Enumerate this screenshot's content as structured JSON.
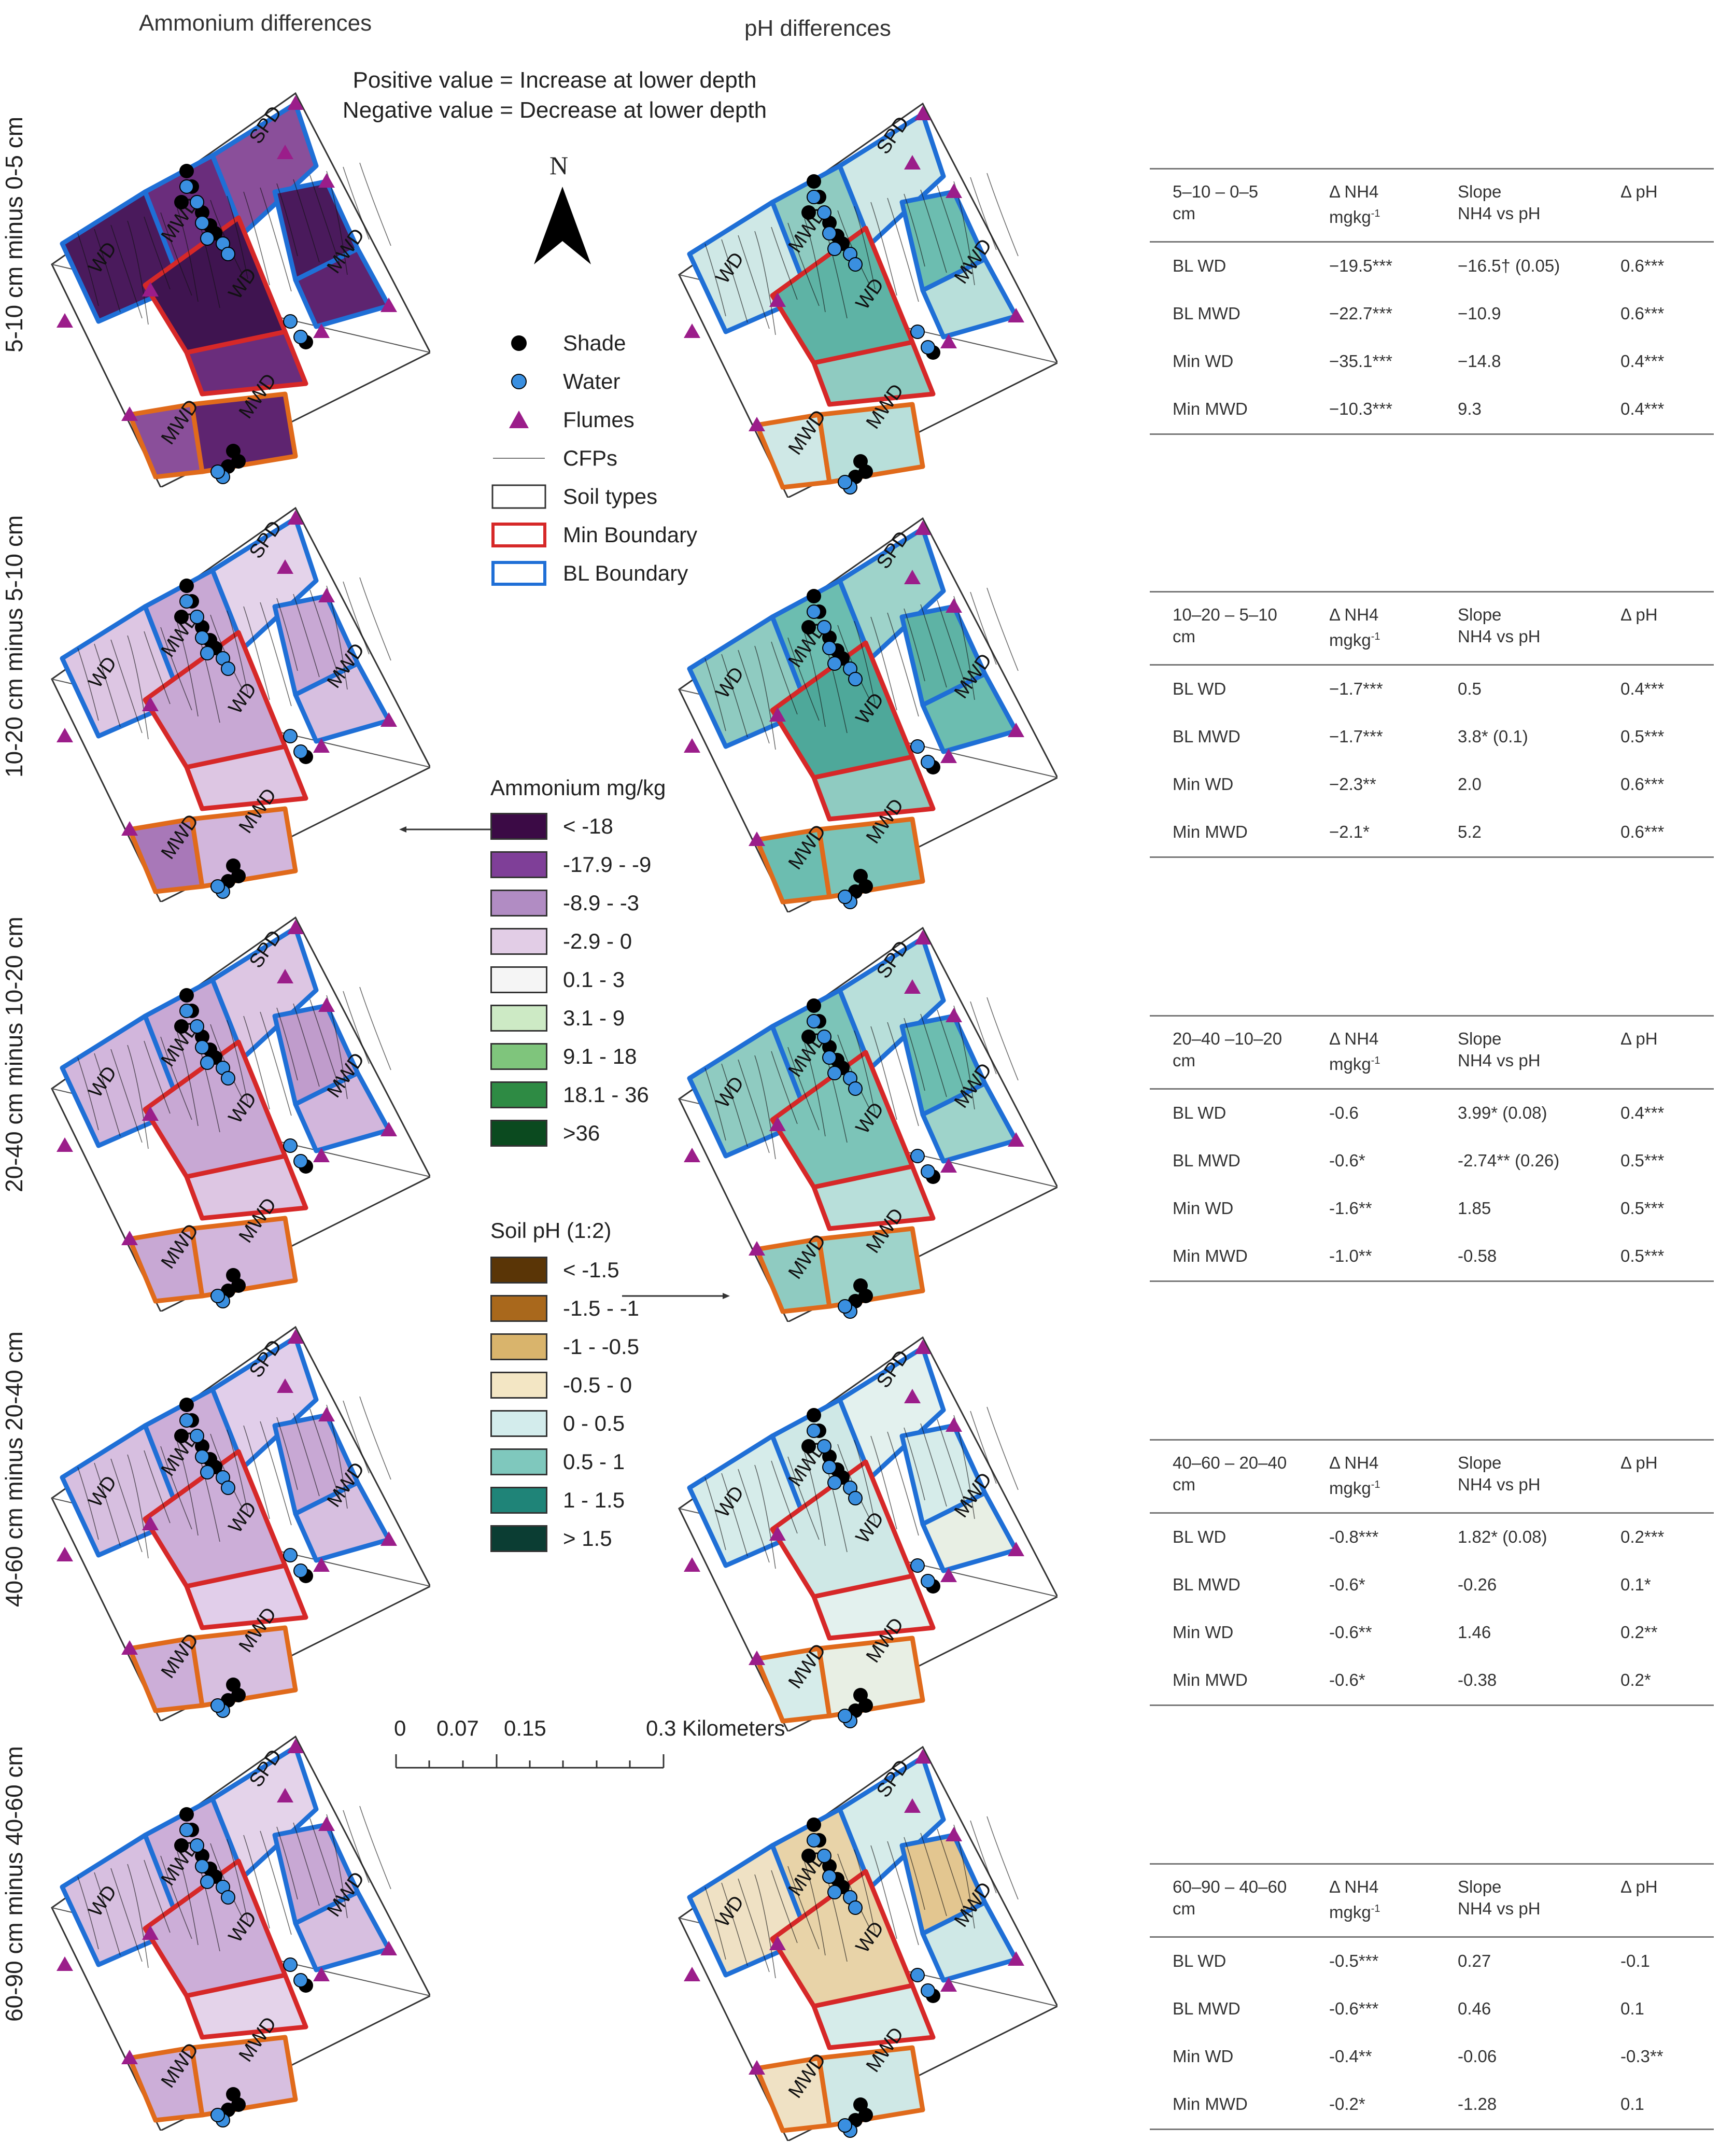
{
  "column_titles": {
    "ammonium": "Ammonium differences",
    "ph": "pH differences"
  },
  "note": {
    "line1": "Positive value = Increase at lower depth",
    "line2": "Negative value = Decrease at lower depth"
  },
  "north_label": "N",
  "rows": [
    {
      "label": "5-10 cm minus 0-5 cm",
      "amm_fill": [
        "#4a1a5c",
        "#6a2d7c",
        "#8a4f9a",
        "#4a1a5c",
        "#5e2470",
        "#3f1450",
        "#6a2d7c",
        "#8a4f9a",
        "#5e2470"
      ],
      "ph_fill": [
        "#cfe8e6",
        "#8fcbc1",
        "#cfe8e6",
        "#6cbdb0",
        "#b8dfda",
        "#5eb3a5",
        "#8fcbc1",
        "#cfe8e6",
        "#b8dfda"
      ]
    },
    {
      "label": "10-20 cm minus 5-10 cm",
      "amm_fill": [
        "#ddc6e3",
        "#c8a8d4",
        "#e4d3ea",
        "#c8a8d4",
        "#d7bfe0",
        "#c8a8d4",
        "#ddc6e3",
        "#a878b8",
        "#d2b6dc"
      ],
      "ph_fill": [
        "#8fcbc1",
        "#6cbdb0",
        "#9ed3ca",
        "#5eb3a5",
        "#6cbdb0",
        "#4ea89a",
        "#8fcbc1",
        "#6cbdb0",
        "#7cc4b8"
      ]
    },
    {
      "label": "20-40 cm minus 10-20 cm",
      "amm_fill": [
        "#d2b6dc",
        "#c8a8d4",
        "#ddc6e3",
        "#c09ccc",
        "#d2b6dc",
        "#c8a8d4",
        "#ddc6e3",
        "#c8a8d4",
        "#d2b6dc"
      ],
      "ph_fill": [
        "#8fcbc1",
        "#7cc4b8",
        "#b8dfda",
        "#6cbdb0",
        "#9ed3ca",
        "#7cc4b8",
        "#b8dfda",
        "#8fcbc1",
        "#9ed3ca"
      ]
    },
    {
      "label": "40-60 cm minus 20-40 cm",
      "amm_fill": [
        "#d7bfe0",
        "#ccaed8",
        "#e1ceea",
        "#c8a8d4",
        "#d7bfe0",
        "#ccaed8",
        "#e1ceea",
        "#ccaed8",
        "#d7bfe0"
      ],
      "ph_fill": [
        "#d6ecea",
        "#cfe8e6",
        "#e3f1ee",
        "#d6ecea",
        "#e8efe4",
        "#cfe8e6",
        "#e3f1ee",
        "#d6ecea",
        "#e8efe4"
      ]
    },
    {
      "label": "60-90 cm minus 40-60 cm",
      "amm_fill": [
        "#d7bfe0",
        "#ccaed8",
        "#e4d3ea",
        "#c8a8d4",
        "#d7bfe0",
        "#ccaed8",
        "#e4d3ea",
        "#ccaed8",
        "#d7bfe0"
      ],
      "ph_fill": [
        "#efe1c4",
        "#e8d3a8",
        "#d6ecea",
        "#e3c690",
        "#cfe8e6",
        "#e8d3a8",
        "#d6ecea",
        "#efe1c4",
        "#cfe8e6"
      ]
    }
  ],
  "map_labels": [
    "SPD",
    "WD",
    "MWD",
    "WD",
    "MWD",
    "MWD",
    "WD",
    "MWD"
  ],
  "boundary_colors": {
    "min": "#d62828",
    "bl": "#1f6fd6",
    "orange": "#e06a1b"
  },
  "symbol_legend": [
    {
      "label": "Shade",
      "icon": "black-circle"
    },
    {
      "label": "Water",
      "icon": "blue-circle"
    },
    {
      "label": "Flumes",
      "icon": "purple-triangle"
    },
    {
      "label": "CFPs",
      "icon": "thin-line"
    },
    {
      "label": "Soil types",
      "icon": "black-rectangle"
    },
    {
      "label": "Min Boundary",
      "icon": "red-rectangle"
    },
    {
      "label": "BL Boundary",
      "icon": "blue-rectangle"
    }
  ],
  "ammonium_legend": {
    "title": "Ammonium mg/kg",
    "items": [
      {
        "label": "< -18",
        "color": "#3b0a45"
      },
      {
        "label": "-17.9 - -9",
        "color": "#7f3f98"
      },
      {
        "label": "-8.9 - -3",
        "color": "#b18cc3"
      },
      {
        "label": "-2.9 - 0",
        "color": "#e2cde6"
      },
      {
        "label": "0.1 - 3",
        "color": "#f5f5f5"
      },
      {
        "label": "3.1 - 9",
        "color": "#cdeac5"
      },
      {
        "label": "9.1 - 18",
        "color": "#7fc57c"
      },
      {
        "label": "18.1 - 36",
        "color": "#2e8b44"
      },
      {
        "label": ">36",
        "color": "#0b4a1f"
      }
    ]
  },
  "ph_legend": {
    "title": "Soil pH (1:2)",
    "items": [
      {
        "label": "< -1.5",
        "color": "#5a3506"
      },
      {
        "label": "-1.5 - -1",
        "color": "#a9681c"
      },
      {
        "label": "-1 - -0.5",
        "color": "#d9b46c"
      },
      {
        "label": "-0.5 - 0",
        "color": "#f3e6c4"
      },
      {
        "label": "0 - 0.5",
        "color": "#d3ecec"
      },
      {
        "label": "0.5 - 1",
        "color": "#7fc8bd"
      },
      {
        "label": "1 - 1.5",
        "color": "#1f8478"
      },
      {
        "label": "> 1.5",
        "color": "#0b3d33"
      }
    ]
  },
  "scale_bar": {
    "ticks": [
      "0",
      "0.07",
      "0.15",
      "0.3 Kilometers"
    ]
  },
  "tables": [
    {
      "header": {
        "c1a": "5–10 – 0–5",
        "c1b": "cm",
        "c2a": "Δ NH4",
        "c2b": "mgkg",
        "c2sup": "-1",
        "c3a": "Slope",
        "c3b": "NH4 vs pH",
        "c4a": "Δ pH"
      },
      "rows": [
        [
          "BL WD",
          "−19.5***",
          "−16.5† (0.05)",
          "0.6***"
        ],
        [
          "BL MWD",
          "−22.7***",
          "−10.9",
          "0.6***"
        ],
        [
          "Min WD",
          "−35.1***",
          "−14.8",
          "0.4***"
        ],
        [
          "Min MWD",
          "−10.3***",
          "9.3",
          "0.4***"
        ]
      ]
    },
    {
      "header": {
        "c1a": "10–20 – 5–10",
        "c1b": "cm",
        "c2a": "Δ NH4",
        "c2b": "mgkg",
        "c2sup": "-1",
        "c3a": "Slope",
        "c3b": "NH4 vs pH",
        "c4a": "Δ pH"
      },
      "rows": [
        [
          "BL WD",
          "−1.7***",
          "0.5",
          "0.4***"
        ],
        [
          "BL MWD",
          "−1.7***",
          "3.8* (0.1)",
          "0.5***"
        ],
        [
          "Min WD",
          "−2.3**",
          "2.0",
          "0.6***"
        ],
        [
          "Min MWD",
          "−2.1*",
          "5.2",
          "0.6***"
        ]
      ]
    },
    {
      "header": {
        "c1a": "20–40 –10–20",
        "c1b": "cm",
        "c2a": "Δ NH4",
        "c2b": "mgkg",
        "c2sup": "-1",
        "c3a": "Slope",
        "c3b": "NH4 vs pH",
        "c4a": "Δ pH"
      },
      "rows": [
        [
          "BL WD",
          "-0.6",
          "3.99* (0.08)",
          "0.4***"
        ],
        [
          "BL MWD",
          "-0.6*",
          "-2.74** (0.26)",
          "0.5***"
        ],
        [
          "Min WD",
          "-1.6**",
          "1.85",
          "0.5***"
        ],
        [
          "Min MWD",
          "-1.0**",
          "-0.58",
          "0.5***"
        ]
      ]
    },
    {
      "header": {
        "c1a": "40–60 – 20–40",
        "c1b": "cm",
        "c2a": "Δ NH4",
        "c2b": "mgkg",
        "c2sup": "-1",
        "c3a": "Slope",
        "c3b": "NH4 vs pH",
        "c4a": "Δ pH"
      },
      "rows": [
        [
          "BL WD",
          "-0.8***",
          "1.82* (0.08)",
          "0.2***"
        ],
        [
          "BL MWD",
          "-0.6*",
          "-0.26",
          "0.1*"
        ],
        [
          "Min WD",
          "-0.6**",
          "1.46",
          "0.2**"
        ],
        [
          "Min MWD",
          "-0.6*",
          "-0.38",
          "0.2*"
        ]
      ]
    },
    {
      "header": {
        "c1a": "60–90 – 40–60",
        "c1b": "cm",
        "c2a": "Δ NH4",
        "c2b": "mgkg",
        "c2sup": "-1",
        "c3a": "Slope",
        "c3b": "NH4 vs pH",
        "c4a": "Δ pH"
      },
      "rows": [
        [
          "BL WD",
          "-0.5***",
          "0.27",
          "-0.1"
        ],
        [
          "BL MWD",
          "-0.6***",
          "0.46",
          "0.1"
        ],
        [
          "Min WD",
          "-0.4**",
          "-0.06",
          "-0.3**"
        ],
        [
          "Min MWD",
          "-0.2*",
          "-1.28",
          "0.1"
        ]
      ]
    }
  ]
}
